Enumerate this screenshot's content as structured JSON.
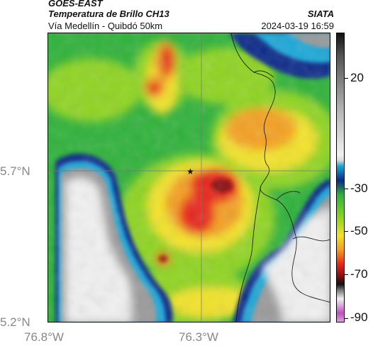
{
  "header": {
    "satellite": "GOES-EAST",
    "product": "Temperatura de Brillo CH13",
    "route": "Vía Medellín - Quibdó 50km",
    "source": "SIATA",
    "datetime": "2024-03-19 16:59"
  },
  "axes": {
    "y_labels": [
      {
        "text": "5.7°N",
        "value": 5.7
      },
      {
        "text": "5.2°N",
        "value": 5.2
      }
    ],
    "x_labels": [
      {
        "text": "76.8°W",
        "value": -76.8
      },
      {
        "text": "76.3°W",
        "value": -76.3
      }
    ]
  },
  "colorbar": {
    "ticks": [
      {
        "label": "20",
        "value": 20
      },
      {
        "label": "-30",
        "value": -30
      },
      {
        "label": "-50",
        "value": -50
      },
      {
        "label": "-70",
        "value": -70
      },
      {
        "label": "-90",
        "value": -90
      }
    ],
    "range": [
      -95,
      35
    ],
    "colors": {
      "white": "#f0f0f0",
      "gray": "#9a9a9a",
      "cyan": "#1aa8d8",
      "navy": "#0a2a8a",
      "green": "#2fb23a",
      "lime": "#8fd420",
      "yellow": "#f2e22a",
      "orange": "#f4a020",
      "red": "#e8281a",
      "darkred": "#8a1010",
      "black": "#111111",
      "magenta": "#c050c0"
    }
  },
  "marker": {
    "icon": "star-icon"
  }
}
